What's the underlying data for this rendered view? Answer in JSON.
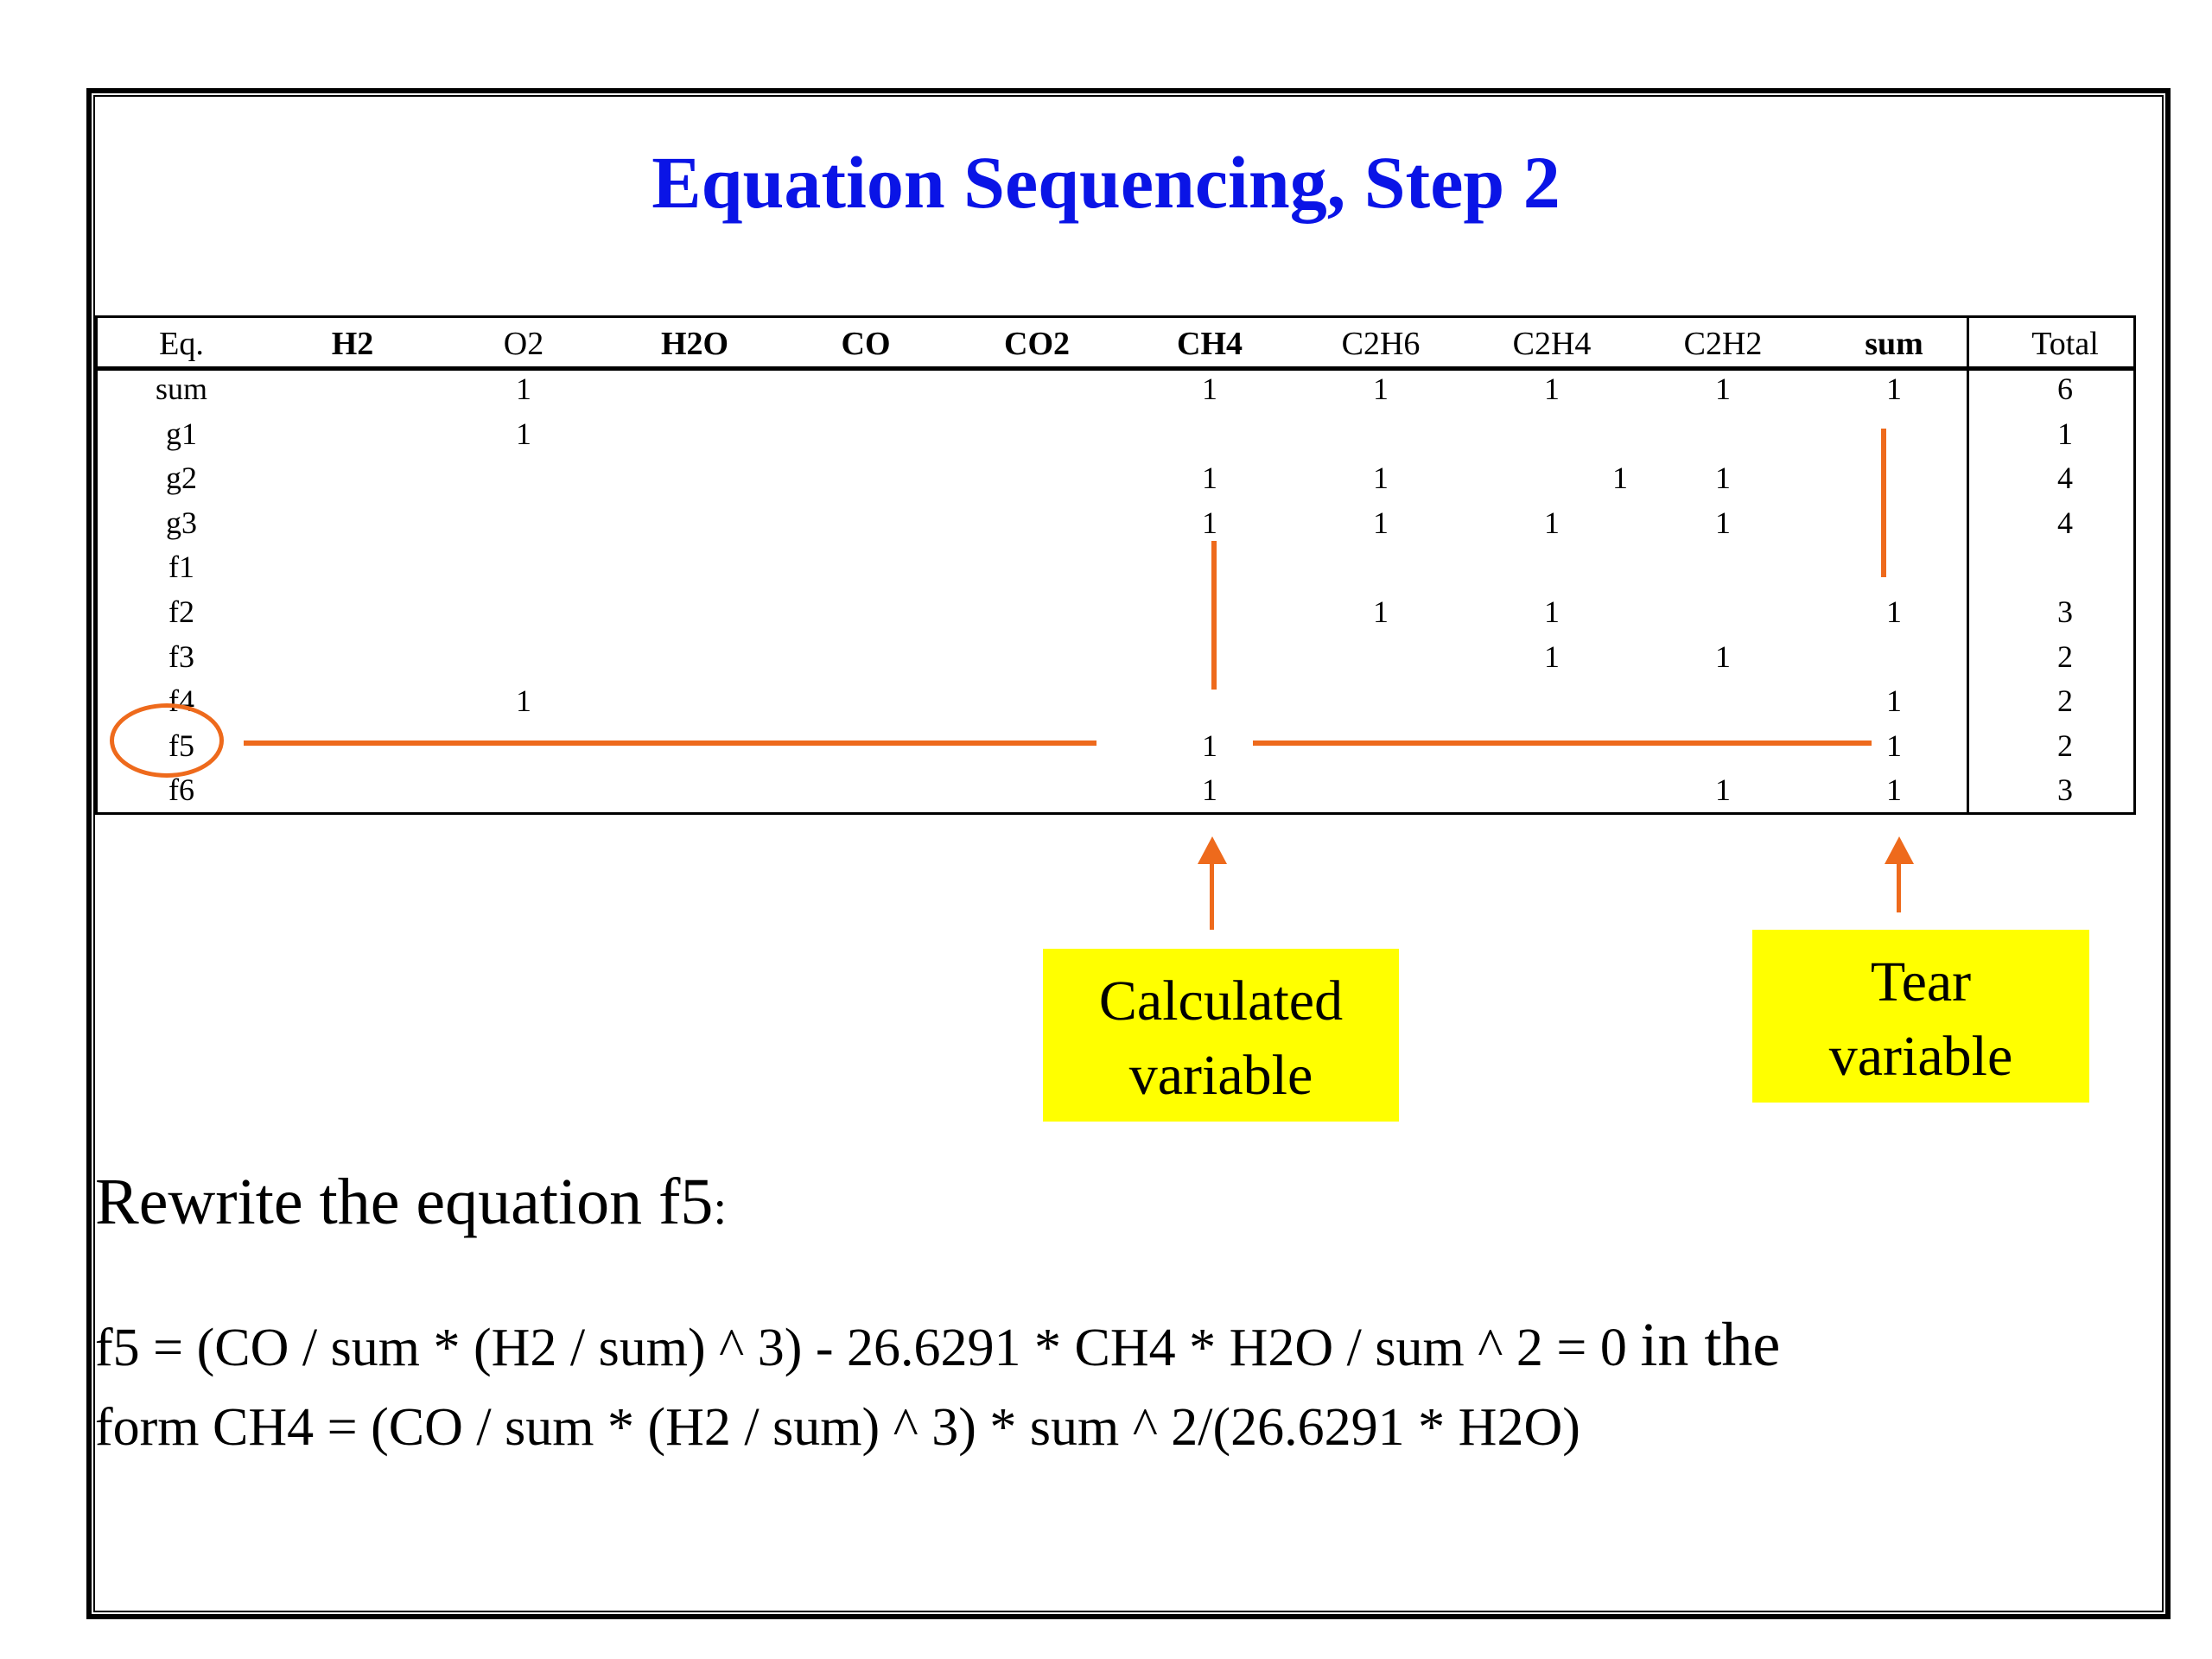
{
  "title": "Equation Sequencing, Step 2",
  "matrix": {
    "headers": [
      "Eq.",
      "H2",
      "O2",
      "H2O",
      "CO",
      "CO2",
      "CH4",
      "C2H6",
      "C2H4",
      "C2H2",
      "sum",
      "Total"
    ],
    "rows": [
      {
        "eq": "sum",
        "O2": "1",
        "CH4": "1",
        "C2H6": "1",
        "C2H4": "1",
        "C2H2": "1",
        "sum": "1",
        "total": "6"
      },
      {
        "eq": "g1",
        "O2": "1",
        "total": "1"
      },
      {
        "eq": "g2",
        "CH4": "1",
        "C2H6": "1",
        "C2H4": "1",
        "C2H2": "1",
        "total": "4"
      },
      {
        "eq": "g3",
        "CH4": "1",
        "C2H6": "1",
        "C2H4": "1",
        "C2H2": "1",
        "total": "4"
      },
      {
        "eq": "f1"
      },
      {
        "eq": "f2",
        "C2H6": "1",
        "C2H4": "1",
        "sum": "1",
        "total": "3"
      },
      {
        "eq": "f3",
        "C2H4": "1",
        "C2H2": "1",
        "total": "2"
      },
      {
        "eq": "f4",
        "O2": "1",
        "sum": "1",
        "total": "2"
      },
      {
        "eq": "f5",
        "CH4": "1",
        "sum": "1",
        "total": "2"
      },
      {
        "eq": "f6",
        "CH4": "1",
        "C2H2": "1",
        "sum": "1",
        "total": "3"
      }
    ]
  },
  "callouts": {
    "calculated": {
      "line1": "Calculated",
      "line2": "variable"
    },
    "tear": {
      "line1": "Tear",
      "line2": "variable"
    }
  },
  "rewrite_text": "Rewrite the equation f5",
  "rewrite_colon": ":",
  "formula": {
    "part1": "f5 = (CO / sum * (H2 / sum) ^ 3) - 26.6291 * CH4 * H2O / sum ^ 2 = 0 ",
    "in_the": "in the",
    "part2": "form CH4 =  (CO / sum * (H2 / sum) ^ 3) * sum ^ 2/(26.6291 * H2O)"
  },
  "colors": {
    "title": "#0a14e6",
    "highlight": "#ee6a1c",
    "callout_bg": "#ffff00"
  }
}
